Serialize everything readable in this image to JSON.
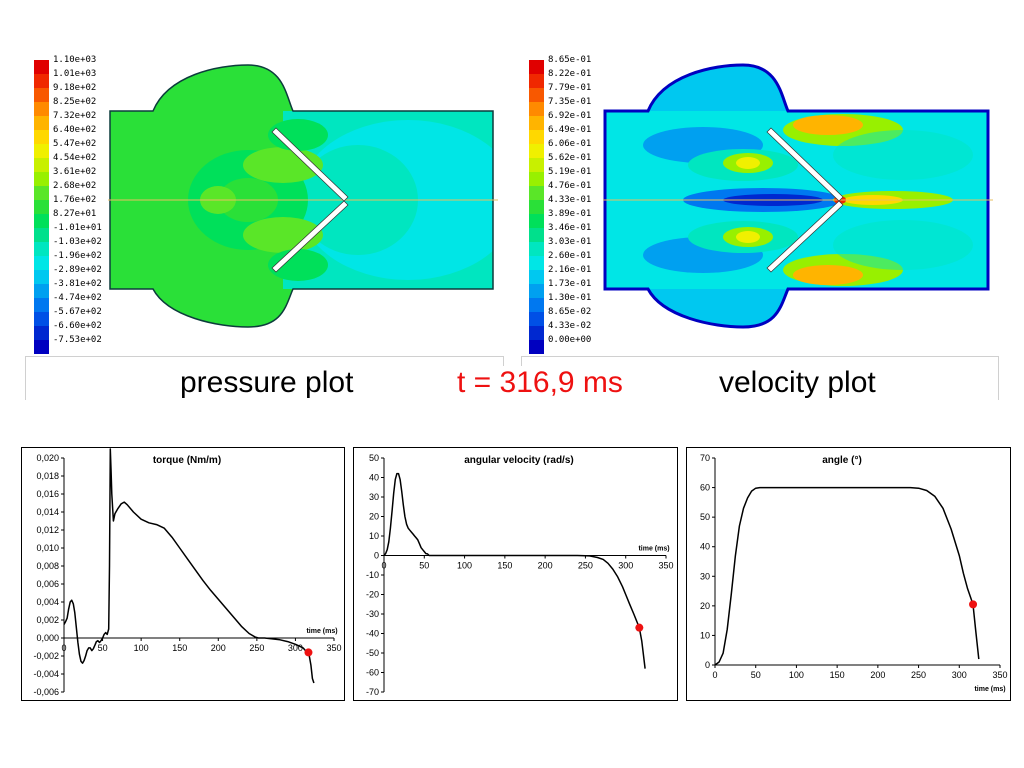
{
  "pressure_plot": {
    "legend": [
      "1.10e+03",
      "1.01e+03",
      "9.18e+02",
      "8.25e+02",
      "7.32e+02",
      "6.40e+02",
      "5.47e+02",
      "4.54e+02",
      "3.61e+02",
      "2.68e+02",
      "1.76e+02",
      "8.27e+01",
      "-1.01e+01",
      "-1.03e+02",
      "-1.96e+02",
      "-2.89e+02",
      "-3.81e+02",
      "-4.74e+02",
      "-5.67e+02",
      "-6.60e+02",
      "-7.53e+02"
    ]
  },
  "velocity_plot": {
    "legend": [
      "8.65e-01",
      "8.22e-01",
      "7.79e-01",
      "7.35e-01",
      "6.92e-01",
      "6.49e-01",
      "6.06e-01",
      "5.62e-01",
      "5.19e-01",
      "4.76e-01",
      "4.33e-01",
      "3.89e-01",
      "3.46e-01",
      "3.03e-01",
      "2.60e-01",
      "2.16e-01",
      "1.73e-01",
      "1.30e-01",
      "8.65e-02",
      "4.33e-02",
      "0.00e+00"
    ]
  },
  "colormap": [
    "#e00000",
    "#f02800",
    "#f85800",
    "#ff8a00",
    "#ffb400",
    "#ffd800",
    "#f0f000",
    "#c8f000",
    "#98f000",
    "#5ae628",
    "#2ae038",
    "#00e05a",
    "#00e08c",
    "#00e6c0",
    "#00e6e6",
    "#00c8f0",
    "#00a0f0",
    "#0078f0",
    "#0050e6",
    "#0028d0",
    "#0000c0"
  ],
  "captions": {
    "pressure": "pressure plot",
    "time": "t = 316,9 ms",
    "velocity": "velocity plot"
  },
  "chart_data": [
    {
      "type": "line",
      "title": "torque (Nm/m)",
      "xlabel": "time (ms)",
      "xlim": [
        0,
        350
      ],
      "ylim": [
        -0.006,
        0.02
      ],
      "xticks": [
        "0",
        "50",
        "100",
        "150",
        "200",
        "250",
        "300",
        "350"
      ],
      "yticks": [
        "0,020",
        "0,018",
        "0,016",
        "0,014",
        "0,012",
        "0,010",
        "0,008",
        "0,006",
        "0,004",
        "0,002",
        "0,000",
        "-0,002",
        "-0,004",
        "-0,006"
      ],
      "series": [
        {
          "x": [
            0,
            2,
            4,
            6,
            8,
            10,
            12,
            14,
            16,
            18,
            20,
            22,
            24,
            26,
            28,
            30,
            32,
            34,
            36,
            38,
            40,
            42,
            44,
            46,
            48,
            50,
            52,
            54,
            56,
            58,
            59,
            60,
            61,
            62,
            64,
            66,
            70,
            74,
            78,
            82,
            90,
            100,
            110,
            120,
            130,
            140,
            150,
            160,
            170,
            180,
            190,
            200,
            210,
            220,
            230,
            240,
            248,
            252,
            256,
            260,
            270,
            280,
            290,
            300,
            305,
            310,
            312,
            314,
            316.9,
            318,
            320,
            322,
            324
          ],
          "y": [
            0.0015,
            0.0018,
            0.0022,
            0.0032,
            0.004,
            0.0042,
            0.0038,
            0.0028,
            0.0012,
            -0.0005,
            -0.0018,
            -0.0026,
            -0.0028,
            -0.0025,
            -0.002,
            -0.0014,
            -0.0011,
            -0.0011,
            -0.0014,
            -0.0012,
            -0.0008,
            -0.0004,
            -0.0003,
            -0.0005,
            -0.0003,
            0.0,
            0.0004,
            0.0006,
            0.0004,
            0.001,
            0.008,
            0.021,
            0.0185,
            0.016,
            0.013,
            0.0138,
            0.0144,
            0.0149,
            0.0151,
            0.0148,
            0.014,
            0.0132,
            0.0128,
            0.0126,
            0.0122,
            0.0112,
            0.01,
            0.0088,
            0.0076,
            0.0064,
            0.0053,
            0.0043,
            0.0033,
            0.0023,
            0.0013,
            0.0005,
            0.0001,
            0.0,
            0.0,
            0.0,
            -0.0001,
            -0.0002,
            -0.0004,
            -0.0007,
            -0.0009,
            -0.0011,
            -0.0013,
            -0.0015,
            -0.0016,
            -0.002,
            -0.003,
            -0.0045,
            -0.005
          ]
        }
      ],
      "marker": {
        "x": 316.9,
        "y": -0.0016,
        "color": "#ee1111"
      }
    },
    {
      "type": "line",
      "title": "angular velocity (rad/s)",
      "xlabel": "time (ms)",
      "xlim": [
        0,
        350
      ],
      "ylim": [
        -70,
        50
      ],
      "xticks": [
        "0",
        "50",
        "100",
        "150",
        "200",
        "250",
        "300",
        "350"
      ],
      "yticks": [
        "50",
        "40",
        "30",
        "20",
        "10",
        "0",
        "-10",
        "-20",
        "-30",
        "-40",
        "-50",
        "-60",
        "-70"
      ],
      "series": [
        {
          "x": [
            0,
            2,
            4,
            6,
            8,
            10,
            12,
            14,
            16,
            18,
            20,
            22,
            24,
            26,
            28,
            30,
            32,
            34,
            36,
            38,
            40,
            42,
            44,
            46,
            48,
            50,
            52,
            54,
            56,
            60,
            80,
            120,
            160,
            200,
            240,
            255,
            265,
            272,
            278,
            284,
            290,
            296,
            300,
            305,
            310,
            316.9,
            320,
            324
          ],
          "y": [
            0,
            1,
            3,
            7,
            14,
            23,
            32,
            39,
            42,
            42,
            39,
            33,
            26,
            20,
            16,
            14,
            13,
            12,
            11,
            10,
            9,
            8,
            6,
            4,
            3,
            2,
            1,
            0.8,
            0,
            0,
            0,
            0,
            0,
            0,
            0,
            -0.2,
            -1,
            -2,
            -4,
            -7,
            -11,
            -16,
            -20,
            -25,
            -30,
            -37,
            -44,
            -58
          ]
        }
      ],
      "marker": {
        "x": 316.9,
        "y": -37,
        "color": "#ee1111"
      }
    },
    {
      "type": "line",
      "title": "angle (°)",
      "xlabel": "time (ms)",
      "xlim": [
        0,
        350
      ],
      "ylim": [
        0,
        70
      ],
      "xticks": [
        "0",
        "50",
        "100",
        "150",
        "200",
        "250",
        "300",
        "350"
      ],
      "yticks": [
        "70",
        "60",
        "50",
        "40",
        "30",
        "20",
        "10",
        "0"
      ],
      "series": [
        {
          "x": [
            0,
            5,
            10,
            15,
            20,
            25,
            30,
            35,
            40,
            45,
            50,
            55,
            60,
            100,
            150,
            200,
            240,
            250,
            260,
            270,
            280,
            290,
            300,
            305,
            310,
            316.9,
            320,
            324
          ],
          "y": [
            0,
            1,
            4,
            12,
            24,
            37,
            47,
            53,
            56.5,
            58.8,
            59.8,
            60,
            60,
            60,
            60,
            60,
            60,
            59.8,
            59,
            57,
            53,
            46,
            37,
            31,
            26,
            20.5,
            12,
            2
          ]
        }
      ],
      "marker": {
        "x": 316.9,
        "y": 20.5,
        "color": "#ee1111"
      }
    }
  ]
}
